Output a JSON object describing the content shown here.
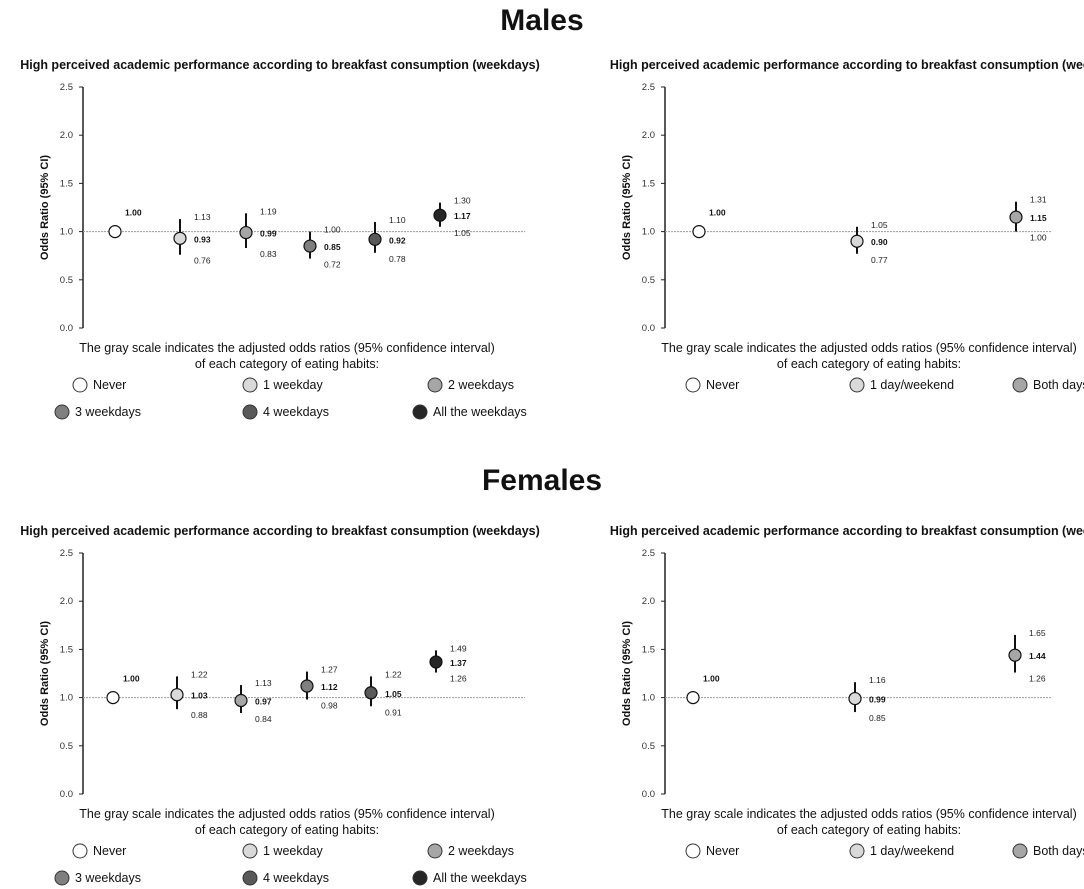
{
  "sections": [
    "Males",
    "Females"
  ],
  "caption_line1": "The gray scale indicates the adjusted odds ratios (95% confidence interval)",
  "caption_line2": "of each category of eating habits:",
  "colors": {
    "Never": "#ffffff",
    "1": "#d9d9d9",
    "2": "#a6a6a6",
    "3": "#7f7f7f",
    "4": "#595959",
    "all": "#262626"
  },
  "chart_data": [
    {
      "type": "scatter",
      "section": "Males",
      "title": "High perceived academic performance according to breakfast consumption (weekdays)",
      "ylabel": "Odds Ratio (95% CI)",
      "ylim": [
        0,
        2.5
      ],
      "yticks": [
        "0.0",
        "0.5",
        "1.0",
        "1.5",
        "2.0",
        "2.5"
      ],
      "reference_line": 1.0,
      "categories": [
        "Never",
        "1 weekday",
        "2 weekdays",
        "3 weekdays",
        "4 weekdays",
        "All the weekdays"
      ],
      "colors": [
        "#ffffff",
        "#d9d9d9",
        "#a6a6a6",
        "#7f7f7f",
        "#595959",
        "#262626"
      ],
      "or": [
        "1.00",
        "0.93",
        "0.99",
        "0.85",
        "0.92",
        "1.17"
      ],
      "upper": [
        null,
        "1.13",
        "1.19",
        "1.00",
        "1.10",
        "1.30"
      ],
      "lower": [
        null,
        "0.76",
        "0.83",
        "0.72",
        "0.78",
        "1.05"
      ]
    },
    {
      "type": "scatter",
      "section": "Males",
      "title": "High perceived academic performance according to breakfast consumption (weekends)",
      "ylabel": "Odds Ratio (95% CI)",
      "ylim": [
        0,
        2.5
      ],
      "yticks": [
        "0.0",
        "0.5",
        "1.0",
        "1.5",
        "2.0",
        "2.5"
      ],
      "reference_line": 1.0,
      "categories": [
        "Never",
        "1 day/weekend",
        "Both days"
      ],
      "colors": [
        "#ffffff",
        "#d9d9d9",
        "#a6a6a6"
      ],
      "or": [
        "1.00",
        "0.90",
        "1.15"
      ],
      "upper": [
        null,
        "1.05",
        "1.31"
      ],
      "lower": [
        null,
        "0.77",
        "1.00"
      ]
    },
    {
      "type": "scatter",
      "section": "Females",
      "title": "High perceived academic performance according to breakfast consumption (weekdays)",
      "ylabel": "Odds Ratio (95% CI)",
      "ylim": [
        0,
        2.5
      ],
      "yticks": [
        "0.0",
        "0.5",
        "1.0",
        "1.5",
        "2.0",
        "2.5"
      ],
      "reference_line": 1.0,
      "categories": [
        "Never",
        "1 weekday",
        "2 weekdays",
        "3 weekdays",
        "4 weekdays",
        "All the weekdays"
      ],
      "colors": [
        "#ffffff",
        "#d9d9d9",
        "#a6a6a6",
        "#7f7f7f",
        "#595959",
        "#262626"
      ],
      "or": [
        "1.00",
        "1.03",
        "0.97",
        "1.12",
        "1.05",
        "1.37"
      ],
      "upper": [
        null,
        "1.22",
        "1.13",
        "1.27",
        "1.22",
        "1.49"
      ],
      "lower": [
        null,
        "0.88",
        "0.84",
        "0.98",
        "0.91",
        "1.26"
      ]
    },
    {
      "type": "scatter",
      "section": "Females",
      "title": "High perceived academic performance according to breakfast consumption (weekends)",
      "ylabel": "Odds Ratio (95% CI)",
      "ylim": [
        0,
        2.5
      ],
      "yticks": [
        "0.0",
        "0.5",
        "1.0",
        "1.5",
        "2.0",
        "2.5"
      ],
      "reference_line": 1.0,
      "categories": [
        "Never",
        "1 day/weekend",
        "Both days"
      ],
      "colors": [
        "#ffffff",
        "#d9d9d9",
        "#a6a6a6"
      ],
      "or": [
        "1.00",
        "0.99",
        "1.44"
      ],
      "upper": [
        null,
        "1.16",
        "1.65"
      ],
      "lower": [
        null,
        "0.85",
        "1.26"
      ]
    }
  ]
}
